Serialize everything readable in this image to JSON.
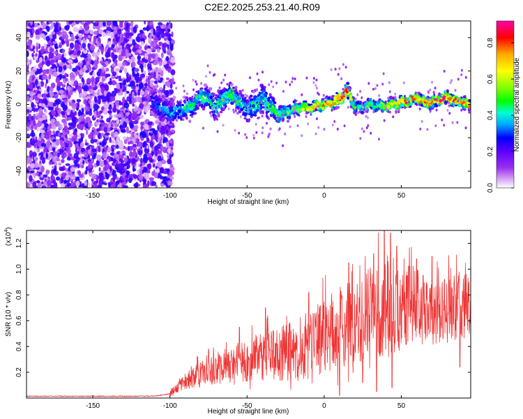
{
  "figure": {
    "title": "C2E2.2025.253.21.40.R09"
  },
  "colors": {
    "snr_line": "#ef3434",
    "axes": "#000000",
    "cmap": [
      "#ffffff",
      "#d9a8f5",
      "#9a30f0",
      "#5a00ff",
      "#0000ff",
      "#00aaff",
      "#00ffd0",
      "#00ff00",
      "#80ff00",
      "#ffff00",
      "#ffaa00",
      "#ff0000",
      "#ff00aa"
    ]
  },
  "chart_data": [
    {
      "type": "heatmap",
      "title": "C2E2.2025.253.21.40.R09",
      "xlabel": "Height of straight line (km)",
      "ylabel": "Frequency (Hz)",
      "xlim": [
        -193,
        95
      ],
      "ylim": [
        -50,
        50
      ],
      "xticks": [
        -150,
        -100,
        -50,
        0,
        50
      ],
      "yticks": [
        -40,
        -20,
        0,
        20,
        40
      ],
      "xtick_labels": [
        "-150",
        "-100",
        "-50",
        "0",
        "50"
      ],
      "ytick_labels": [
        "-40",
        "-20",
        "0",
        "20",
        "40"
      ],
      "noise_region_x": [
        -193,
        -100
      ],
      "noise_intensity": 0.2,
      "signal_start_x": -112,
      "ridge": {
        "x": [
          -112,
          -105,
          -100,
          -95,
          -90,
          -85,
          -80,
          -75,
          -70,
          -65,
          -60,
          -55,
          -50,
          -45,
          -40,
          -35,
          -30,
          -25,
          -20,
          -15,
          -10,
          -5,
          0,
          5,
          10,
          15,
          20,
          25,
          30,
          35,
          40,
          45,
          50,
          55,
          60,
          65,
          70,
          75,
          80,
          85,
          90,
          95
        ],
        "freq": [
          2,
          -3,
          -5,
          -4,
          -3,
          -1,
          5,
          3,
          -2,
          4,
          6,
          1,
          -3,
          -1,
          3,
          -1,
          -6,
          -5,
          -3,
          -2,
          -2,
          -1,
          0,
          1,
          3,
          8,
          -1,
          -2,
          0,
          -1,
          -1,
          0,
          1,
          2,
          4,
          1,
          1,
          3,
          4,
          2,
          1,
          -1
        ],
        "amplitude": [
          0.3,
          0.35,
          0.4,
          0.4,
          0.45,
          0.45,
          0.5,
          0.45,
          0.45,
          0.5,
          0.5,
          0.45,
          0.4,
          0.45,
          0.45,
          0.5,
          0.5,
          0.55,
          0.6,
          0.65,
          0.7,
          0.75,
          0.8,
          0.8,
          0.85,
          0.85,
          0.5,
          0.5,
          0.55,
          0.6,
          0.7,
          0.7,
          0.8,
          0.85,
          0.85,
          0.8,
          0.8,
          0.9,
          0.9,
          0.85,
          0.8,
          0.75
        ],
        "spread": [
          8,
          7,
          6,
          6,
          6,
          6,
          6,
          6,
          7,
          6,
          6,
          6,
          7,
          8,
          8,
          7,
          5,
          4,
          4,
          3,
          3,
          3,
          3,
          3,
          4,
          4,
          3,
          3,
          3,
          3,
          3,
          3,
          3,
          3,
          3,
          3,
          3,
          3,
          3,
          3,
          3,
          3
        ]
      },
      "colorbar": {
        "label": "Normalized spectral amplitude",
        "range": [
          0.0,
          0.9
        ],
        "ticks": [
          0.0,
          0.2,
          0.4,
          0.6,
          0.8
        ],
        "tick_labels": [
          "0.0",
          "0.2",
          "0.4",
          "0.6",
          "0.8"
        ]
      }
    },
    {
      "type": "line",
      "xlabel": "Height of straight line (km)",
      "ylabel": "SNR (10 * v/v)",
      "y_multiplier": "(x10",
      "y_multiplier_exp": "4",
      "y_multiplier_close": ")",
      "xlim": [
        -193,
        95
      ],
      "ylim": [
        0.0,
        1.3
      ],
      "xticks": [
        -150,
        -100,
        -50,
        0,
        50
      ],
      "yticks": [
        0.2,
        0.4,
        0.6,
        0.8,
        1.0,
        1.2
      ],
      "xtick_labels": [
        "-150",
        "-100",
        "-50",
        "0",
        "50"
      ],
      "ytick_labels": [
        "0.2",
        "0.4",
        "0.6",
        "0.8",
        "1.0",
        "1.2"
      ],
      "series": [
        {
          "name": "SNR",
          "envelope_x": [
            -193,
            -110,
            -100,
            -95,
            -90,
            -80,
            -70,
            -60,
            -50,
            -40,
            -30,
            -20,
            -10,
            0,
            10,
            20,
            30,
            40,
            50,
            60,
            70,
            80,
            90,
            95
          ],
          "envelope_baseline": [
            0.01,
            0.01,
            0.03,
            0.08,
            0.12,
            0.18,
            0.22,
            0.25,
            0.28,
            0.3,
            0.32,
            0.34,
            0.38,
            0.45,
            0.52,
            0.58,
            0.62,
            0.66,
            0.68,
            0.72,
            0.62,
            0.66,
            0.7,
            0.72
          ],
          "envelope_variation": [
            0.005,
            0.01,
            0.03,
            0.05,
            0.08,
            0.12,
            0.16,
            0.2,
            0.22,
            0.24,
            0.26,
            0.3,
            0.34,
            0.36,
            0.4,
            0.42,
            0.45,
            0.5,
            0.42,
            0.35,
            0.3,
            0.32,
            0.34,
            0.3
          ],
          "peaks": [
            {
              "x": 39,
              "y": 1.3
            },
            {
              "x": 43,
              "y": 1.28
            },
            {
              "x": 47,
              "y": 1.18
            },
            {
              "x": 32,
              "y": 1.12
            },
            {
              "x": 70,
              "y": 1.1
            },
            {
              "x": 88,
              "y": 1.1
            },
            {
              "x": 60,
              "y": 1.08
            },
            {
              "x": 16,
              "y": 1.05
            },
            {
              "x": -10,
              "y": 0.82
            },
            {
              "x": -38,
              "y": 0.7
            },
            {
              "x": -55,
              "y": 0.55
            },
            {
              "x": -75,
              "y": 0.38
            },
            {
              "x": 54,
              "y": 0.95
            },
            {
              "x": 78,
              "y": 0.92
            }
          ],
          "troughs": [
            {
              "x": 34,
              "y": 0.05
            },
            {
              "x": 10,
              "y": 0.02
            },
            {
              "x": 44,
              "y": 0.08
            },
            {
              "x": 25,
              "y": 0.12
            },
            {
              "x": 88,
              "y": 0.24
            }
          ]
        }
      ]
    }
  ]
}
